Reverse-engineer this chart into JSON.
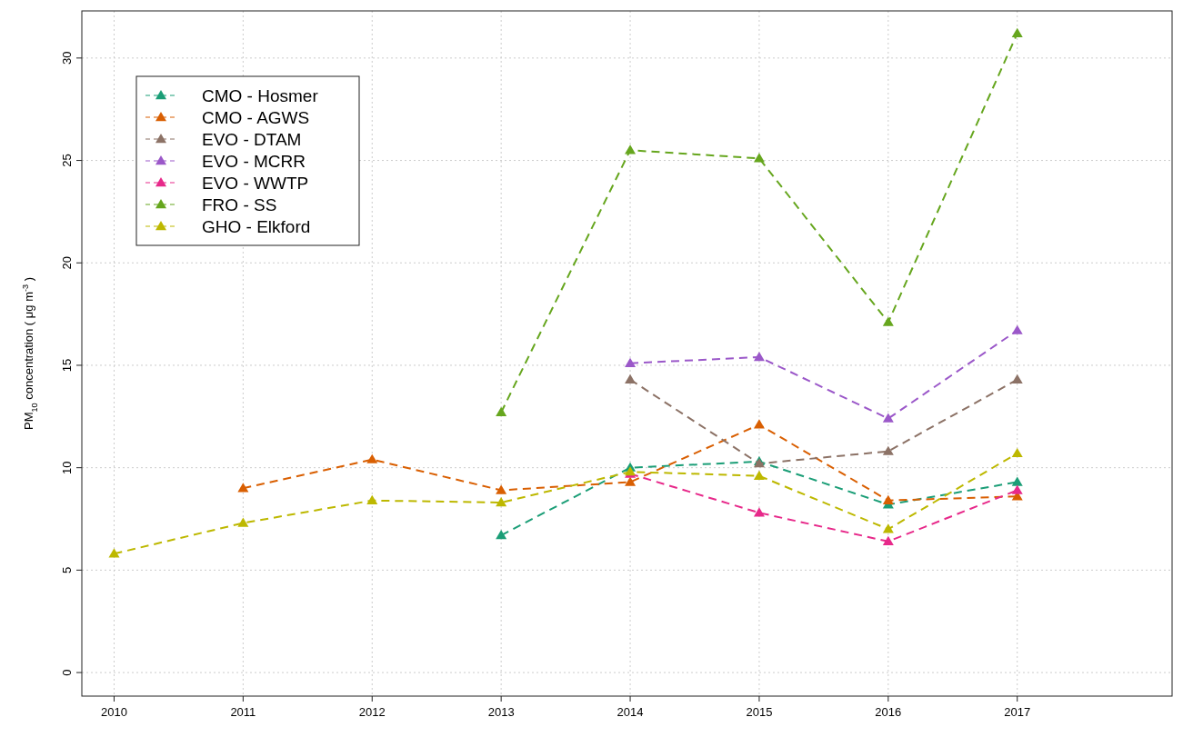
{
  "chart_data": {
    "type": "line",
    "ylabel": "PM$_{10}$ concentration ( μg m$^{-3}$ )",
    "x": [
      2010,
      2011,
      2012,
      2013,
      2014,
      2015,
      2016,
      2017
    ],
    "xlim": [
      2009.75,
      2018.2
    ],
    "xticks": [
      2010,
      2011,
      2012,
      2013,
      2014,
      2015,
      2016,
      2017
    ],
    "ylim": [
      -1.15,
      32.3
    ],
    "yticks": [
      0,
      5,
      10,
      15,
      20,
      25,
      30
    ],
    "grid": true,
    "legend": "top left",
    "marker": "triangle",
    "line_style": "dashed",
    "series": [
      {
        "name": "CMO - Hosmer",
        "color": "#1b9e77",
        "values": [
          null,
          null,
          null,
          6.7,
          10.0,
          10.3,
          8.2,
          9.3
        ]
      },
      {
        "name": "CMO - AGWS",
        "color": "#d95f02",
        "values": [
          null,
          9.0,
          10.4,
          8.9,
          9.3,
          12.1,
          8.4,
          8.6
        ]
      },
      {
        "name": "EVO - DTAM",
        "color": "#8c7266",
        "values": [
          null,
          null,
          null,
          null,
          14.3,
          10.2,
          10.8,
          14.3
        ]
      },
      {
        "name": "EVO - MCRR",
        "color": "#9b58c9",
        "values": [
          null,
          null,
          null,
          null,
          15.1,
          15.4,
          12.4,
          16.7
        ]
      },
      {
        "name": "EVO - WWTP",
        "color": "#e7298a",
        "values": [
          null,
          null,
          null,
          null,
          9.7,
          7.8,
          6.4,
          8.9
        ]
      },
      {
        "name": "FRO - SS",
        "color": "#66a61e",
        "values": [
          null,
          null,
          null,
          12.7,
          25.5,
          25.1,
          17.1,
          31.2
        ]
      },
      {
        "name": "GHO - Elkford",
        "color": "#bdb800",
        "values": [
          5.8,
          7.3,
          8.4,
          8.3,
          9.8,
          9.6,
          7.0,
          10.7
        ]
      }
    ]
  }
}
